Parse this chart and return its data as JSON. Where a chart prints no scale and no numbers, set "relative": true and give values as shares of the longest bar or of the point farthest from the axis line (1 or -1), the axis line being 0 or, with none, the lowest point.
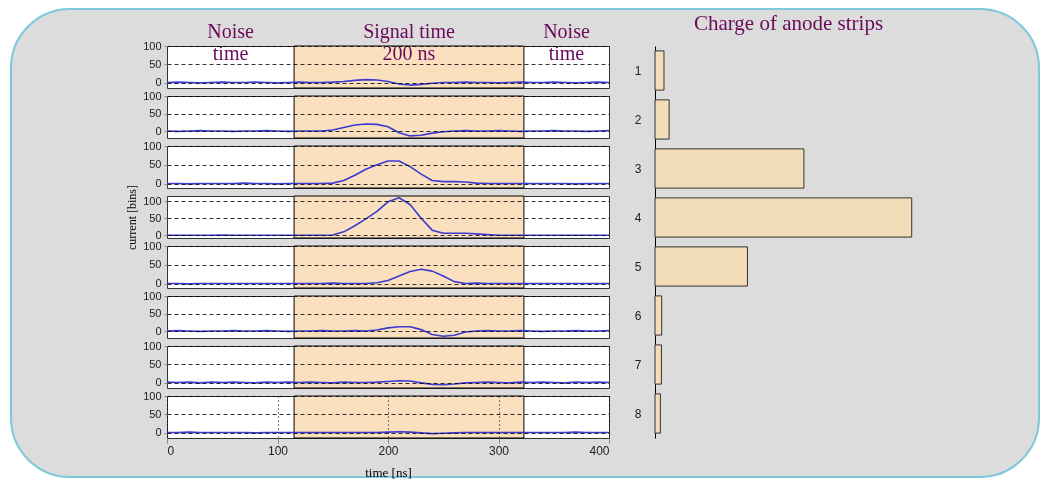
{
  "chart_data": [
    {
      "type": "line",
      "x": [
        0,
        10,
        20,
        30,
        40,
        50,
        60,
        70,
        80,
        90,
        100,
        110,
        120,
        130,
        140,
        150,
        160,
        170,
        180,
        190,
        200,
        210,
        220,
        230,
        240,
        250,
        260,
        270,
        280,
        290,
        300,
        310,
        320,
        330,
        340,
        350,
        360,
        370,
        380,
        390,
        400
      ],
      "series": [
        {
          "color": "#3a3ad0",
          "values": [
            0,
            1,
            0,
            -1,
            0,
            1,
            0,
            0,
            1,
            0,
            -1,
            0,
            1,
            0,
            0,
            1,
            3,
            6,
            8,
            7,
            3,
            -4,
            -7,
            -5,
            -2,
            0,
            0,
            1,
            0,
            0,
            -1,
            0,
            1,
            0,
            0,
            1,
            0,
            -1,
            0,
            1,
            0
          ]
        }
      ],
      "xlim": [
        0,
        400
      ],
      "ylim": [
        -15,
        100
      ],
      "yticks": [
        0,
        50,
        100
      ],
      "grid": "y",
      "tick_labels": "y",
      "marker": "none",
      "line_style": "solid",
      "bands": [
        {
          "axis": "x",
          "from": 115,
          "to": 323,
          "label": "Signal time\n200 ns",
          "color": "#fbe0bf"
        }
      ],
      "annotations": [
        "Noise\ntime",
        "Noise\ntime"
      ]
    },
    {
      "type": "line",
      "x": [
        0,
        10,
        20,
        30,
        40,
        50,
        60,
        70,
        80,
        90,
        100,
        110,
        120,
        130,
        140,
        150,
        160,
        170,
        180,
        190,
        200,
        210,
        220,
        230,
        240,
        250,
        260,
        270,
        280,
        290,
        300,
        310,
        320,
        330,
        340,
        350,
        360,
        370,
        380,
        390,
        400
      ],
      "series": [
        {
          "color": "#3a3ad0",
          "values": [
            0,
            -1,
            0,
            1,
            0,
            0,
            -1,
            0,
            0,
            1,
            0,
            -1,
            0,
            0,
            0,
            3,
            10,
            17,
            20,
            19,
            12,
            -5,
            -14,
            -12,
            -6,
            -2,
            0,
            1,
            0,
            0,
            1,
            0,
            -1,
            0,
            0,
            1,
            0,
            0,
            -1,
            0,
            1
          ]
        }
      ],
      "xlim": [
        0,
        400
      ],
      "ylim": [
        -20,
        100
      ],
      "yticks": [
        0,
        50,
        100
      ],
      "grid": "y",
      "tick_labels": "y",
      "marker": "none",
      "line_style": "solid",
      "bands": [
        {
          "axis": "x",
          "from": 115,
          "to": 323,
          "color": "#fbe0bf"
        }
      ]
    },
    {
      "type": "line",
      "x": [
        0,
        10,
        20,
        30,
        40,
        50,
        60,
        70,
        80,
        90,
        100,
        110,
        120,
        130,
        140,
        150,
        160,
        170,
        180,
        190,
        200,
        210,
        220,
        230,
        240,
        250,
        260,
        270,
        280,
        290,
        300,
        310,
        320,
        330,
        340,
        350,
        360,
        370,
        380,
        390,
        400
      ],
      "series": [
        {
          "color": "#3a3ad0",
          "values": [
            0,
            0,
            -1,
            0,
            0,
            0,
            0,
            1,
            0,
            0,
            -1,
            0,
            0,
            0,
            0,
            1,
            8,
            22,
            38,
            50,
            60,
            60,
            45,
            25,
            8,
            5,
            5,
            4,
            1,
            0,
            0,
            0,
            0,
            0,
            0,
            0,
            0,
            -1,
            0,
            0,
            0
          ]
        }
      ],
      "xlim": [
        0,
        400
      ],
      "ylim": [
        -12,
        100
      ],
      "yticks": [
        0,
        50,
        100
      ],
      "grid": "y",
      "tick_labels": "y",
      "marker": "none",
      "line_style": "solid",
      "bands": [
        {
          "axis": "x",
          "from": 115,
          "to": 323,
          "color": "#fbe0bf"
        }
      ]
    },
    {
      "type": "line",
      "ylabel": "current [bins]",
      "x": [
        0,
        10,
        20,
        30,
        40,
        50,
        60,
        70,
        80,
        90,
        100,
        110,
        120,
        130,
        140,
        150,
        160,
        170,
        180,
        190,
        200,
        210,
        220,
        230,
        240,
        250,
        260,
        270,
        280,
        290,
        300,
        310,
        320,
        330,
        340,
        350,
        360,
        370,
        380,
        390,
        400
      ],
      "series": [
        {
          "color": "#3a3ad0",
          "values": [
            0,
            0,
            0,
            0,
            0,
            1,
            0,
            0,
            0,
            0,
            0,
            0,
            0,
            0,
            0,
            1,
            10,
            28,
            48,
            70,
            98,
            110,
            90,
            50,
            15,
            6,
            6,
            6,
            4,
            2,
            0,
            0,
            0,
            0,
            0,
            0,
            0,
            0,
            0,
            0,
            0
          ]
        }
      ],
      "xlim": [
        0,
        400
      ],
      "ylim": [
        -8,
        115
      ],
      "yticks": [
        0,
        50,
        100
      ],
      "grid": "y",
      "tick_labels": "y",
      "marker": "none",
      "line_style": "solid",
      "bands": [
        {
          "axis": "x",
          "from": 115,
          "to": 323,
          "color": "#fbe0bf"
        }
      ]
    },
    {
      "type": "line",
      "x": [
        0,
        10,
        20,
        30,
        40,
        50,
        60,
        70,
        80,
        90,
        100,
        110,
        120,
        130,
        140,
        150,
        160,
        170,
        180,
        190,
        200,
        210,
        220,
        230,
        240,
        250,
        260,
        270,
        280,
        290,
        300,
        310,
        320,
        330,
        340,
        350,
        360,
        370,
        380,
        390,
        400
      ],
      "series": [
        {
          "color": "#3a3ad0",
          "values": [
            0,
            0,
            -1,
            0,
            0,
            0,
            0,
            0,
            0,
            0,
            0,
            0,
            0,
            0,
            0,
            1,
            0,
            0,
            0,
            2,
            8,
            20,
            32,
            38,
            33,
            20,
            5,
            0,
            1,
            0,
            0,
            0,
            0,
            0,
            0,
            0,
            0,
            0,
            0,
            0,
            0
          ]
        }
      ],
      "xlim": [
        0,
        400
      ],
      "ylim": [
        -12,
        100
      ],
      "yticks": [
        0,
        50,
        100
      ],
      "grid": "y",
      "tick_labels": "y",
      "marker": "none",
      "line_style": "solid",
      "bands": [
        {
          "axis": "x",
          "from": 115,
          "to": 323,
          "color": "#fbe0bf"
        }
      ]
    },
    {
      "type": "line",
      "x": [
        0,
        10,
        20,
        30,
        40,
        50,
        60,
        70,
        80,
        90,
        100,
        110,
        120,
        130,
        140,
        150,
        160,
        170,
        180,
        190,
        200,
        210,
        220,
        230,
        240,
        250,
        260,
        270,
        280,
        290,
        300,
        310,
        320,
        330,
        340,
        350,
        360,
        370,
        380,
        390,
        400
      ],
      "series": [
        {
          "color": "#3a3ad0",
          "values": [
            0,
            1,
            0,
            -1,
            0,
            0,
            1,
            0,
            0,
            1,
            0,
            -1,
            0,
            0,
            1,
            0,
            0,
            1,
            0,
            3,
            9,
            12,
            12,
            4,
            -10,
            -15,
            -12,
            -3,
            0,
            1,
            0,
            0,
            1,
            0,
            -1,
            0,
            0,
            1,
            0,
            0,
            1
          ]
        }
      ],
      "xlim": [
        0,
        400
      ],
      "ylim": [
        -20,
        100
      ],
      "yticks": [
        0,
        50,
        100
      ],
      "grid": "y",
      "tick_labels": "y",
      "marker": "none",
      "line_style": "solid",
      "bands": [
        {
          "axis": "x",
          "from": 115,
          "to": 323,
          "color": "#fbe0bf"
        }
      ]
    },
    {
      "type": "line",
      "x": [
        0,
        10,
        20,
        30,
        40,
        50,
        60,
        70,
        80,
        90,
        100,
        110,
        120,
        130,
        140,
        150,
        160,
        170,
        180,
        190,
        200,
        210,
        220,
        230,
        240,
        250,
        260,
        270,
        280,
        290,
        300,
        310,
        320,
        330,
        340,
        350,
        360,
        370,
        380,
        390,
        400
      ],
      "series": [
        {
          "color": "#3a3ad0",
          "values": [
            1,
            0,
            1,
            -1,
            1,
            0,
            1,
            0,
            -1,
            1,
            0,
            1,
            0,
            1,
            0,
            -1,
            1,
            0,
            0,
            1,
            3,
            5,
            4,
            -1,
            -5,
            -6,
            -4,
            -1,
            0,
            1,
            0,
            -1,
            1,
            0,
            1,
            0,
            -1,
            1,
            0,
            1,
            0
          ]
        }
      ],
      "xlim": [
        0,
        400
      ],
      "ylim": [
        -15,
        100
      ],
      "yticks": [
        0,
        50,
        100
      ],
      "grid": "y",
      "tick_labels": "y",
      "marker": "none",
      "line_style": "solid",
      "bands": [
        {
          "axis": "x",
          "from": 115,
          "to": 323,
          "color": "#fbe0bf"
        }
      ]
    },
    {
      "type": "line",
      "xlabel": "time [ns]",
      "x": [
        0,
        10,
        20,
        30,
        40,
        50,
        60,
        70,
        80,
        90,
        100,
        110,
        120,
        130,
        140,
        150,
        160,
        170,
        180,
        190,
        200,
        210,
        220,
        230,
        240,
        250,
        260,
        270,
        280,
        290,
        300,
        310,
        320,
        330,
        340,
        350,
        360,
        370,
        380,
        390,
        400
      ],
      "series": [
        {
          "color": "#3a3ad0",
          "values": [
            0,
            0,
            1,
            0,
            0,
            0,
            0,
            0,
            -1,
            0,
            0,
            0,
            0,
            0,
            0,
            0,
            0,
            0,
            0,
            0,
            1,
            2,
            1,
            -1,
            -3,
            -2,
            -1,
            0,
            0,
            0,
            0,
            0,
            0,
            0,
            0,
            0,
            0,
            1,
            0,
            0,
            0
          ]
        }
      ],
      "xlim": [
        0,
        400
      ],
      "ylim": [
        -15,
        100
      ],
      "xticks": [
        0,
        100,
        200,
        300,
        400
      ],
      "yticks": [
        0,
        50,
        100
      ],
      "grid": true,
      "marker": "none",
      "line_style": "solid",
      "bands": [
        {
          "axis": "x",
          "from": 115,
          "to": 323,
          "color": "#fbe0bf"
        }
      ]
    },
    {
      "type": "bar",
      "title": "Charge of anode strips",
      "orientation": "horizontal",
      "relative": true,
      "categories": [
        "1",
        "2",
        "3",
        "4",
        "5",
        "6",
        "7",
        "8"
      ],
      "values": [
        0.035,
        0.055,
        0.58,
        1,
        0.36,
        0.026,
        0.025,
        0.021
      ],
      "color": "#f3dcb8"
    }
  ]
}
